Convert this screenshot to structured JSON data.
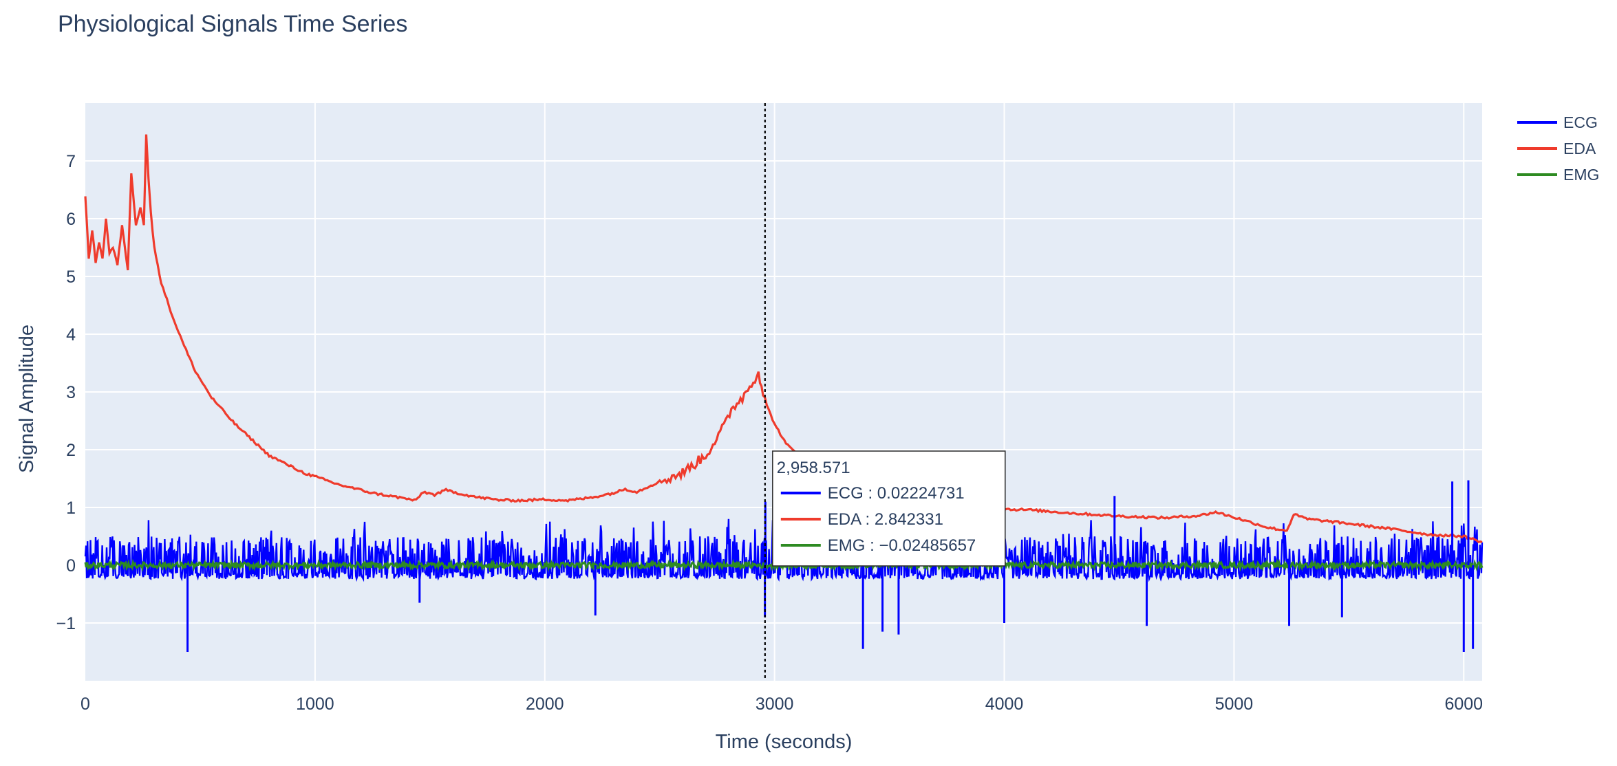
{
  "chart_data": {
    "type": "line",
    "title": "Physiological Signals Time Series",
    "xlabel": "Time (seconds)",
    "ylabel": "Signal Amplitude",
    "xlim": [
      0,
      6080
    ],
    "ylim": [
      -2,
      8
    ],
    "x_ticks": [
      0,
      1000,
      2000,
      3000,
      4000,
      5000,
      6000
    ],
    "x_tick_labels": [
      "0",
      "1000",
      "2000",
      "3000",
      "4000",
      "5000",
      "6000"
    ],
    "y_ticks": [
      -1,
      0,
      1,
      2,
      3,
      4,
      5,
      6,
      7
    ],
    "y_tick_labels": [
      "−1",
      "0",
      "1",
      "2",
      "3",
      "4",
      "5",
      "6",
      "7"
    ],
    "grid": true,
    "legend_position": "top-right",
    "series": [
      {
        "name": "ECG",
        "color": "#0000ff",
        "baseline": 0.0,
        "noise_amplitude": 0.5,
        "spikes": [
          {
            "x": 445,
            "y": -1.5
          },
          {
            "x": 1455,
            "y": -0.65
          },
          {
            "x": 2220,
            "y": -0.87
          },
          {
            "x": 2958,
            "y": -0.9
          },
          {
            "x": 2960,
            "y": 1.1
          },
          {
            "x": 3385,
            "y": -1.45
          },
          {
            "x": 3470,
            "y": -1.15
          },
          {
            "x": 3540,
            "y": -1.2
          },
          {
            "x": 4000,
            "y": -1.0
          },
          {
            "x": 4620,
            "y": -1.05
          },
          {
            "x": 5240,
            "y": -1.05
          },
          {
            "x": 4480,
            "y": 1.2
          },
          {
            "x": 6000,
            "y": -1.5
          },
          {
            "x": 6040,
            "y": -1.45
          },
          {
            "x": 6020,
            "y": 1.47
          },
          {
            "x": 5950,
            "y": 1.45
          },
          {
            "x": 5470,
            "y": -0.9
          }
        ]
      },
      {
        "name": "EDA",
        "color": "#ef3b2c",
        "points": [
          [
            0,
            6.4
          ],
          [
            15,
            5.3
          ],
          [
            30,
            5.8
          ],
          [
            45,
            5.25
          ],
          [
            60,
            5.6
          ],
          [
            75,
            5.3
          ],
          [
            90,
            6.0
          ],
          [
            105,
            5.4
          ],
          [
            120,
            5.5
          ],
          [
            140,
            5.2
          ],
          [
            160,
            5.9
          ],
          [
            185,
            5.1
          ],
          [
            200,
            6.8
          ],
          [
            220,
            5.9
          ],
          [
            240,
            6.2
          ],
          [
            255,
            5.9
          ],
          [
            265,
            7.45
          ],
          [
            275,
            6.7
          ],
          [
            285,
            6.1
          ],
          [
            300,
            5.5
          ],
          [
            330,
            4.9
          ],
          [
            380,
            4.3
          ],
          [
            430,
            3.8
          ],
          [
            480,
            3.35
          ],
          [
            550,
            2.9
          ],
          [
            650,
            2.45
          ],
          [
            800,
            1.9
          ],
          [
            950,
            1.6
          ],
          [
            1100,
            1.4
          ],
          [
            1250,
            1.25
          ],
          [
            1400,
            1.15
          ],
          [
            1440,
            1.12
          ],
          [
            1470,
            1.27
          ],
          [
            1520,
            1.22
          ],
          [
            1570,
            1.3
          ],
          [
            1620,
            1.25
          ],
          [
            1700,
            1.18
          ],
          [
            1800,
            1.13
          ],
          [
            1900,
            1.12
          ],
          [
            2000,
            1.14
          ],
          [
            2100,
            1.12
          ],
          [
            2200,
            1.17
          ],
          [
            2300,
            1.25
          ],
          [
            2350,
            1.32
          ],
          [
            2400,
            1.27
          ],
          [
            2500,
            1.45
          ],
          [
            2600,
            1.6
          ],
          [
            2700,
            1.9
          ],
          [
            2780,
            2.4
          ],
          [
            2820,
            2.75
          ],
          [
            2860,
            2.9
          ],
          [
            2900,
            3.15
          ],
          [
            2930,
            3.35
          ],
          [
            2950,
            3.0
          ],
          [
            2958,
            2.842331
          ],
          [
            3000,
            2.45
          ],
          [
            3050,
            2.1
          ],
          [
            3150,
            1.75
          ],
          [
            3300,
            1.45
          ],
          [
            3500,
            1.25
          ],
          [
            3700,
            1.1
          ],
          [
            3900,
            0.98
          ],
          [
            4100,
            0.96
          ],
          [
            4300,
            0.9
          ],
          [
            4500,
            0.85
          ],
          [
            4700,
            0.82
          ],
          [
            4850,
            0.86
          ],
          [
            4920,
            0.92
          ],
          [
            5000,
            0.83
          ],
          [
            5150,
            0.65
          ],
          [
            5230,
            0.6
          ],
          [
            5260,
            0.88
          ],
          [
            5320,
            0.8
          ],
          [
            5500,
            0.72
          ],
          [
            5700,
            0.62
          ],
          [
            5850,
            0.53
          ],
          [
            6000,
            0.5
          ],
          [
            6080,
            0.4
          ]
        ]
      },
      {
        "name": "EMG",
        "color": "#2e8b22",
        "baseline": 0.0,
        "noise_amplitude": 0.05
      }
    ],
    "hover": {
      "x": 2958.571,
      "x_label": "2,958.571",
      "entries": [
        {
          "name": "ECG",
          "value_label": "0.02224731",
          "color": "#0000ff"
        },
        {
          "name": "EDA",
          "value_label": "2.842331",
          "color": "#ef3b2c"
        },
        {
          "name": "EMG",
          "value_label": "−0.02485657",
          "color": "#2e8b22"
        }
      ]
    }
  }
}
